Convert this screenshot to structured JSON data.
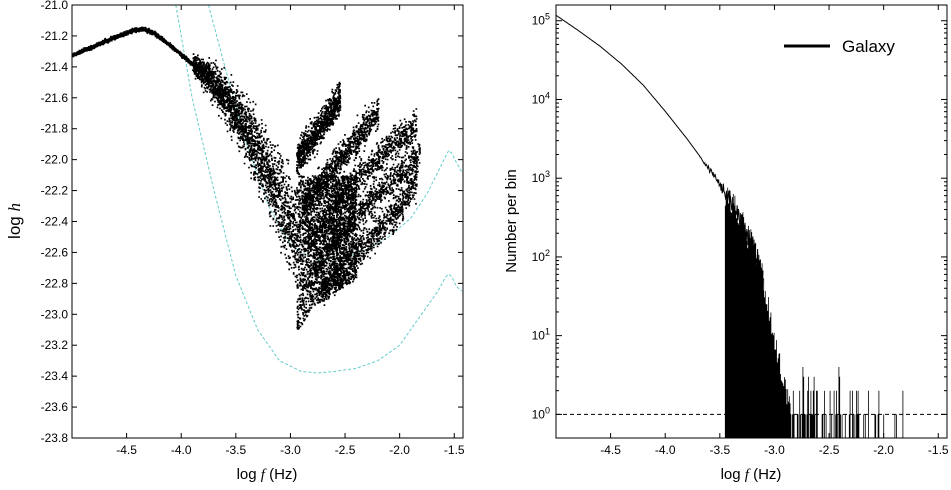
{
  "chart_data": [
    {
      "type": "scatter",
      "xlabel": "log f (Hz)",
      "xlabel_parts": [
        "log ",
        "f",
        " (Hz)"
      ],
      "ylabel": "log h",
      "ylabel_parts": [
        "log ",
        "h"
      ],
      "xlim": [
        -5.0,
        -1.42
      ],
      "ylim": [
        -23.8,
        -21.0
      ],
      "xticks": [
        -4.5,
        -4.0,
        -3.5,
        -3.0,
        -2.5,
        -2.0,
        -1.5
      ],
      "xtick_labels": [
        "-4.5",
        "-4.0",
        "-3.5",
        "-3.0",
        "-2.5",
        "-2.0",
        "-1.5"
      ],
      "yticks": [
        -21.0,
        -21.2,
        -21.4,
        -21.6,
        -21.8,
        -22.0,
        -22.2,
        -22.4,
        -22.6,
        -22.8,
        -23.0,
        -23.2,
        -23.4,
        -23.6,
        -23.8
      ],
      "ytick_labels": [
        "-21.0",
        "-21.2",
        "-21.4",
        "-21.6",
        "-21.8",
        "-22.0",
        "-22.2",
        "-22.4",
        "-22.6",
        "-22.8",
        "-23.0",
        "-23.2",
        "-23.4",
        "-23.6",
        "-23.8"
      ],
      "grid": false,
      "colors": {
        "points": "#000000",
        "curves": "#66cccc"
      },
      "series": [
        {
          "kind": "scatter-band",
          "color": "#000000",
          "ridge": {
            "x": [
              -5.0,
              -4.8,
              -4.6,
              -4.45,
              -4.35,
              -4.25,
              -4.1,
              -3.9,
              -3.7,
              -3.5,
              -3.3,
              -3.1,
              -2.95
            ],
            "y": [
              -21.32,
              -21.26,
              -21.2,
              -21.16,
              -21.15,
              -21.18,
              -21.26,
              -21.38,
              -21.5,
              -21.7,
              -21.95,
              -22.25,
              -22.5
            ]
          },
          "spread_start_x": -3.9,
          "branches": [
            {
              "x": [
                -2.95,
                -2.7,
                -2.55
              ],
              "y": [
                -22.0,
                -21.75,
                -21.6
              ]
            },
            {
              "x": [
                -2.9,
                -2.5,
                -2.2
              ],
              "y": [
                -22.3,
                -21.95,
                -21.68
              ]
            },
            {
              "x": [
                -2.85,
                -2.5,
                -2.05,
                -1.85
              ],
              "y": [
                -22.55,
                -22.2,
                -21.88,
                -21.78
              ]
            },
            {
              "x": [
                -2.8,
                -2.4,
                -1.95,
                -1.82
              ],
              "y": [
                -22.7,
                -22.35,
                -22.05,
                -21.95
              ]
            },
            {
              "x": [
                -2.75,
                -2.4,
                -2.0,
                -1.85
              ],
              "y": [
                -22.85,
                -22.6,
                -22.3,
                -22.12
              ]
            }
          ],
          "bottom_edge": {
            "x": [
              -2.95,
              -2.8,
              -2.6,
              -2.4
            ],
            "y": [
              -23.12,
              -22.95,
              -22.85,
              -22.78
            ]
          }
        },
        {
          "kind": "sensitivity-curve",
          "color": "#66cccc",
          "x": [
            -4.05,
            -3.9,
            -3.7,
            -3.5,
            -3.3,
            -3.1,
            -2.9,
            -2.75,
            -2.6,
            -2.4,
            -2.2,
            -2.0,
            -1.8,
            -1.65,
            -1.58,
            -1.55,
            -1.52,
            -1.48,
            -1.43
          ],
          "y": [
            -21.0,
            -21.6,
            -22.2,
            -22.75,
            -23.1,
            -23.3,
            -23.37,
            -23.38,
            -23.37,
            -23.35,
            -23.3,
            -23.2,
            -23.0,
            -22.85,
            -22.76,
            -22.74,
            -22.76,
            -22.82,
            -22.85
          ]
        },
        {
          "kind": "sensitivity-curve",
          "color": "#66cccc",
          "x": [
            -3.75,
            -3.6,
            -3.4,
            -3.2,
            -3.0,
            -2.85,
            -2.7,
            -2.5,
            -2.3,
            -2.1,
            -1.9,
            -1.75,
            -1.65,
            -1.58,
            -1.55,
            -1.52,
            -1.48,
            -1.43
          ],
          "y": [
            -21.0,
            -21.4,
            -21.9,
            -22.3,
            -22.55,
            -22.62,
            -22.65,
            -22.63,
            -22.58,
            -22.5,
            -22.38,
            -22.22,
            -22.08,
            -21.98,
            -21.94,
            -21.96,
            -22.02,
            -22.08
          ]
        }
      ]
    },
    {
      "type": "histogram",
      "xlabel": "log f (Hz)",
      "xlabel_parts": [
        "log ",
        "f",
        " (Hz)"
      ],
      "ylabel": "Number per bin",
      "xlim": [
        -5.0,
        -1.42
      ],
      "ylim_log10": [
        -0.3,
        5.2
      ],
      "y_scale": "log",
      "xticks": [
        -4.5,
        -4.0,
        -3.5,
        -3.0,
        -2.5,
        -2.0,
        -1.5
      ],
      "xtick_labels": [
        "-4.5",
        "-4.0",
        "-3.5",
        "-3.0",
        "-2.5",
        "-2.0",
        "-1.5"
      ],
      "ytick_exponents": [
        0,
        1,
        2,
        3,
        4,
        5
      ],
      "ytick_base": "10",
      "grid": false,
      "reference_line": {
        "value": 1,
        "style": "dashed"
      },
      "legend": {
        "placement": "top-right",
        "label": "Galaxy"
      },
      "series": [
        {
          "name": "Galaxy",
          "color": "#000000",
          "log10_count_x": [
            -5.0,
            -4.8,
            -4.6,
            -4.4,
            -4.2,
            -4.0,
            -3.8,
            -3.6,
            -3.4,
            -3.2,
            -3.1,
            -3.0,
            -2.95,
            -2.9,
            -2.85
          ],
          "log10_count": [
            5.07,
            4.88,
            4.68,
            4.45,
            4.18,
            3.85,
            3.5,
            3.12,
            2.72,
            2.15,
            1.7,
            1.0,
            0.6,
            0.35,
            0.15
          ]
        }
      ]
    }
  ],
  "legend_label": "Galaxy"
}
